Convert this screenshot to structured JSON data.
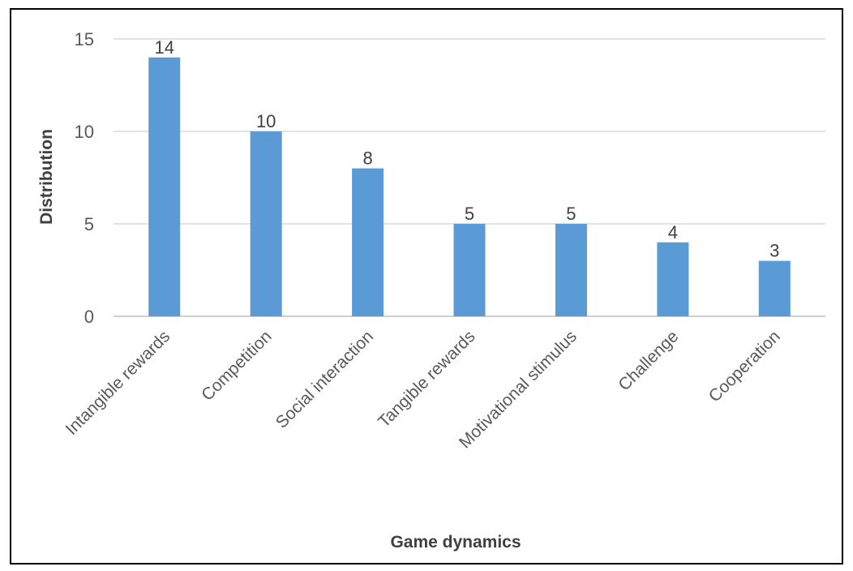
{
  "chart_data": {
    "type": "bar",
    "title": "",
    "xlabel": "Game dynamics",
    "ylabel": "Distribution",
    "categories": [
      "Intangible rewards",
      "Competition",
      "Social interaction",
      "Tangible rewards",
      "Motivational stimulus",
      "Challenge",
      "Cooperation"
    ],
    "values": [
      14,
      10,
      8,
      5,
      5,
      4,
      3
    ],
    "ylim": [
      0,
      15
    ],
    "yticks": [
      0,
      5,
      10,
      15
    ],
    "grid": true,
    "legend": "none",
    "bar_color": "#5b9bd5",
    "gridline_color": "#d9d9d9"
  }
}
